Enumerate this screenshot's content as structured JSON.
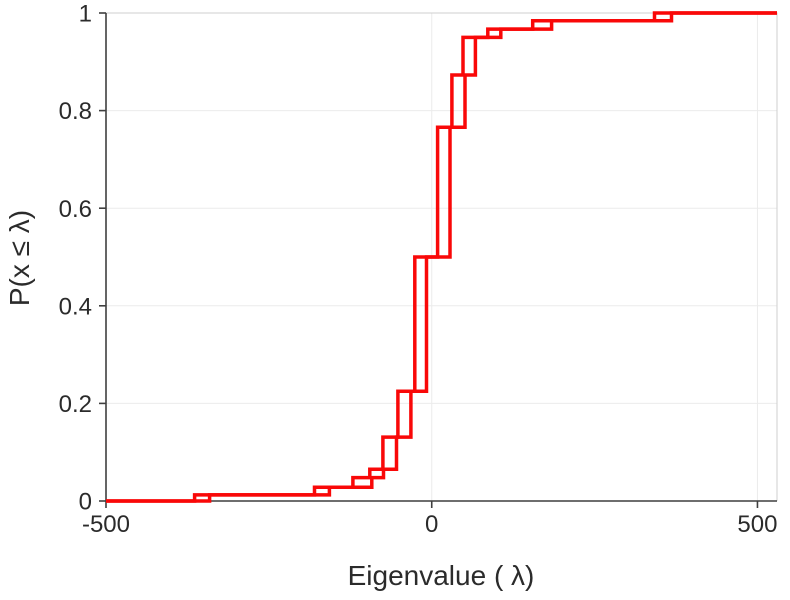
{
  "chart_data": {
    "type": "line",
    "subtype": "ecdf-stairs",
    "title": "",
    "xlabel": "Eigenvalue ( λ)",
    "ylabel": "P(x ≤ λ)",
    "xlim": [
      -500,
      530
    ],
    "ylim": [
      0,
      1
    ],
    "x_tick_labels": [
      "-500",
      "0",
      "500"
    ],
    "x_tick_values": [
      -500,
      0,
      500
    ],
    "y_tick_labels": [
      "0",
      "0.2",
      "0.4",
      "0.6",
      "0.8",
      "1"
    ],
    "y_tick_values": [
      0,
      0.2,
      0.4,
      0.6,
      0.8,
      1
    ],
    "grid": true,
    "legend_position": "none",
    "line_width": 3.5,
    "levels": [
      0,
      0.0125,
      0.028,
      0.048,
      0.065,
      0.131,
      0.225,
      0.5,
      0.766,
      0.873,
      0.95,
      0.967,
      0.984,
      1.0
    ],
    "series": [
      {
        "name": "ecdf-curve-1",
        "jump_x": [
          -364,
          -180,
          -121,
          -95,
          -75,
          -52,
          -26,
          9,
          31,
          48,
          86,
          155,
          342
        ]
      },
      {
        "name": "ecdf-curve-2",
        "jump_x": [
          -341,
          -157,
          -92,
          -74,
          -54,
          -32,
          -8,
          28,
          51,
          67,
          106,
          184,
          368
        ]
      }
    ]
  },
  "colors": {
    "background": "#ffffff",
    "axis": "#3f3f3f",
    "box": "#cfcfcf",
    "grid": "#ebebeb",
    "tick_label": "#2b2b2b",
    "curve": "#f90808"
  }
}
